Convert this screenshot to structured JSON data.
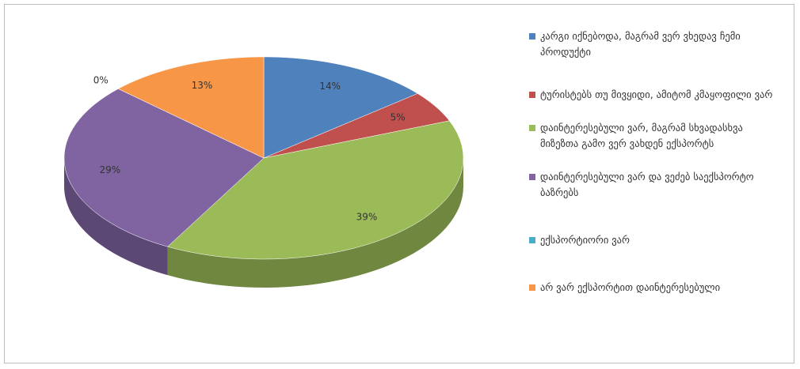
{
  "chart_data": {
    "type": "pie",
    "categories": [
      "კარგი იქნებოდა, მაგრამ ვერ ვხედავ ჩემი პროდუქტი",
      "ტურისტებს თუ მივყიდი, ამიტომ კმაყოფილი ვარ",
      "დაინტერესებული ვარ, მაგრამ სხვადასხვა მიზეზთა გამო ვერ ვახდენ ექსპორტს",
      "დაინტერესებული ვარ და ვეძებ საექსპორტო ბაზრებს",
      "ექსპორტიორი ვარ",
      "არ ვარ ექსპორტით დაინტერესებული"
    ],
    "values": [
      14,
      5,
      39,
      29,
      0,
      13
    ],
    "value_labels": [
      "14%",
      "5%",
      "39%",
      "29%",
      "0%",
      "13%"
    ],
    "colors": [
      "#4f81bd",
      "#c0504d",
      "#9bbb59",
      "#8064a2",
      "#4bacc6",
      "#f79646"
    ],
    "legend": "right"
  }
}
